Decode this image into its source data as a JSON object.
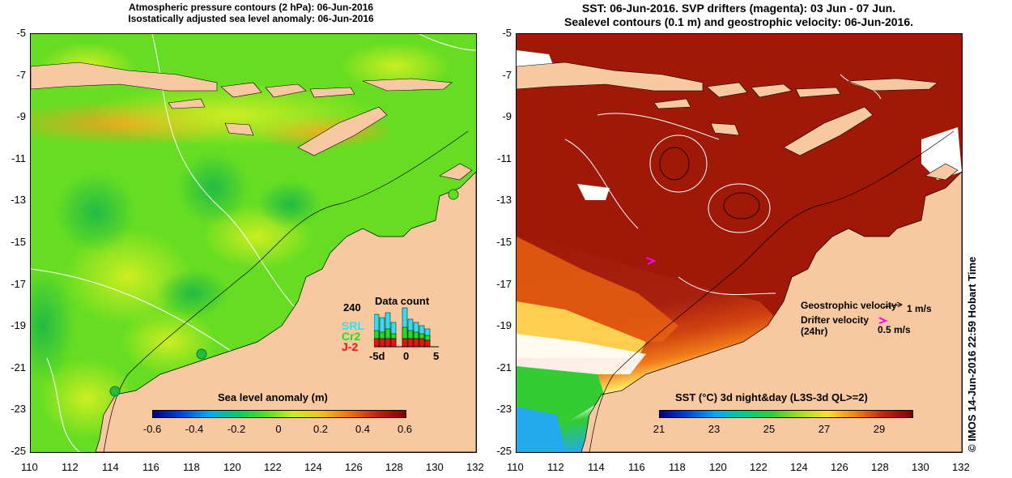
{
  "left_panel": {
    "title_line1": "Atmospheric pressure contours (2 hPa): 06-Jun-2016",
    "title_line2": "Isostatically adjusted sea level anomaly: 06-Jun-2016",
    "colorbar_label": "Sea level anomaly (m)",
    "colorbar_ticks": [
      "-0.6",
      "-0.4",
      "-0.2",
      "0",
      "0.2",
      "0.4",
      "0.6"
    ],
    "data_count": {
      "title": "Data count",
      "ymax_label": "240",
      "x_labels": [
        "-5d",
        "0",
        "5"
      ],
      "legend": [
        {
          "name": "SRL",
          "color": "#33ddee"
        },
        {
          "name": "Cr2",
          "color": "#22dd22"
        },
        {
          "name": "J-2",
          "color": "#ee1111"
        }
      ]
    }
  },
  "right_panel": {
    "title_line1": "SST: 06-Jun-2016. SVP drifters (magenta): 03 Jun - 07 Jun.",
    "title_line2": "Sealevel contours (0.1 m) and geostrophic velocity: 06-Jun-2016.",
    "colorbar_label": "SST (°C) 3d night&day (L3S-3d QL>=2)",
    "colorbar_ticks": [
      "21",
      "23",
      "25",
      "27",
      "29"
    ],
    "geostrophic_label": "Geostrophic velocity",
    "geostrophic_scale": "1 m/s",
    "drifter_label_line1": "Drifter velocity",
    "drifter_label_line2": "(24hr)",
    "drifter_scale": "0.5 m/s"
  },
  "axes": {
    "x_ticks": [
      "110",
      "112",
      "114",
      "116",
      "118",
      "120",
      "122",
      "124",
      "126",
      "128",
      "130",
      "132"
    ],
    "y_ticks": [
      "-5",
      "-7",
      "-9",
      "-11",
      "-13",
      "-15",
      "-17",
      "-19",
      "-21",
      "-23",
      "-25"
    ]
  },
  "credit": "© IMOS 14-Jun-2016 22:59 Hobart Time",
  "colors": {
    "land": "#f8c8a0",
    "slev_mid": "#66dd22",
    "sst_warm": "#a01808",
    "magenta": "#ff00ff"
  }
}
